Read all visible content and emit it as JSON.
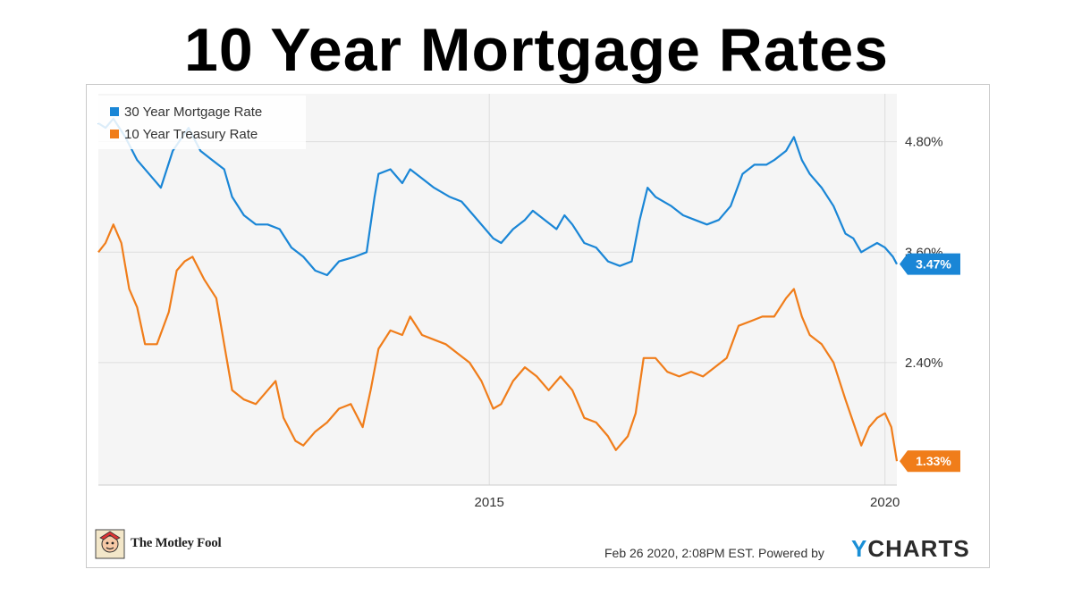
{
  "title": "10 Year Mortgage Rates",
  "colors": {
    "mortgage": "#1a86d6",
    "treasury": "#f07d1a",
    "plot_bg": "#f5f5f5",
    "grid": "#dddddd"
  },
  "footer": {
    "brand": "The Motley Fool",
    "timestamp": "Feb 26 2020, 2:08PM EST.",
    "powered_by": "Powered by",
    "ycharts_y": "Y",
    "ycharts_rest": "CHARTS"
  },
  "chart_data": {
    "type": "line",
    "title": "",
    "xlabel": "",
    "ylabel": "",
    "xlim": [
      2010.06,
      2020.15
    ],
    "ylim": [
      1.07,
      5.32
    ],
    "y_ticks": [
      {
        "value": 4.8,
        "label": "4.80%"
      },
      {
        "value": 3.6,
        "label": "3.60%"
      },
      {
        "value": 2.4,
        "label": "2.40%"
      }
    ],
    "x_ticks": [
      {
        "value": 2015,
        "label": "2015"
      },
      {
        "value": 2020,
        "label": "2020"
      }
    ],
    "grid": true,
    "legend": "top-left",
    "series": [
      {
        "name": "30 Year Mortgage Rate",
        "color": "#1a86d6",
        "last_label": "3.47%",
        "points": [
          [
            2010.06,
            5.0
          ],
          [
            2010.15,
            4.95
          ],
          [
            2010.25,
            5.05
          ],
          [
            2010.4,
            4.85
          ],
          [
            2010.55,
            4.6
          ],
          [
            2010.75,
            4.4
          ],
          [
            2010.85,
            4.3
          ],
          [
            2011.0,
            4.7
          ],
          [
            2011.12,
            4.85
          ],
          [
            2011.2,
            4.95
          ],
          [
            2011.35,
            4.7
          ],
          [
            2011.5,
            4.6
          ],
          [
            2011.65,
            4.5
          ],
          [
            2011.75,
            4.2
          ],
          [
            2011.9,
            4.0
          ],
          [
            2012.05,
            3.9
          ],
          [
            2012.2,
            3.9
          ],
          [
            2012.35,
            3.85
          ],
          [
            2012.5,
            3.65
          ],
          [
            2012.65,
            3.55
          ],
          [
            2012.8,
            3.4
          ],
          [
            2012.95,
            3.35
          ],
          [
            2013.1,
            3.5
          ],
          [
            2013.3,
            3.55
          ],
          [
            2013.45,
            3.6
          ],
          [
            2013.55,
            4.2
          ],
          [
            2013.6,
            4.45
          ],
          [
            2013.75,
            4.5
          ],
          [
            2013.9,
            4.35
          ],
          [
            2014.0,
            4.5
          ],
          [
            2014.15,
            4.4
          ],
          [
            2014.3,
            4.3
          ],
          [
            2014.5,
            4.2
          ],
          [
            2014.65,
            4.15
          ],
          [
            2014.8,
            4.0
          ],
          [
            2014.95,
            3.85
          ],
          [
            2015.05,
            3.75
          ],
          [
            2015.15,
            3.7
          ],
          [
            2015.3,
            3.85
          ],
          [
            2015.45,
            3.95
          ],
          [
            2015.55,
            4.05
          ],
          [
            2015.7,
            3.95
          ],
          [
            2015.85,
            3.85
          ],
          [
            2015.95,
            4.0
          ],
          [
            2016.05,
            3.9
          ],
          [
            2016.2,
            3.7
          ],
          [
            2016.35,
            3.65
          ],
          [
            2016.5,
            3.5
          ],
          [
            2016.65,
            3.45
          ],
          [
            2016.8,
            3.5
          ],
          [
            2016.9,
            3.95
          ],
          [
            2017.0,
            4.3
          ],
          [
            2017.1,
            4.2
          ],
          [
            2017.3,
            4.1
          ],
          [
            2017.45,
            4.0
          ],
          [
            2017.6,
            3.95
          ],
          [
            2017.75,
            3.9
          ],
          [
            2017.9,
            3.95
          ],
          [
            2018.05,
            4.1
          ],
          [
            2018.2,
            4.45
          ],
          [
            2018.35,
            4.55
          ],
          [
            2018.5,
            4.55
          ],
          [
            2018.6,
            4.6
          ],
          [
            2018.75,
            4.7
          ],
          [
            2018.85,
            4.85
          ],
          [
            2018.95,
            4.6
          ],
          [
            2019.05,
            4.45
          ],
          [
            2019.2,
            4.3
          ],
          [
            2019.35,
            4.1
          ],
          [
            2019.5,
            3.8
          ],
          [
            2019.6,
            3.75
          ],
          [
            2019.7,
            3.6
          ],
          [
            2019.8,
            3.65
          ],
          [
            2019.9,
            3.7
          ],
          [
            2020.0,
            3.65
          ],
          [
            2020.1,
            3.55
          ],
          [
            2020.15,
            3.47
          ]
        ]
      },
      {
        "name": "10 Year Treasury Rate",
        "color": "#f07d1a",
        "last_label": "1.33%",
        "points": [
          [
            2010.06,
            3.6
          ],
          [
            2010.15,
            3.7
          ],
          [
            2010.25,
            3.9
          ],
          [
            2010.35,
            3.7
          ],
          [
            2010.45,
            3.2
          ],
          [
            2010.55,
            3.0
          ],
          [
            2010.65,
            2.6
          ],
          [
            2010.8,
            2.6
          ],
          [
            2010.95,
            2.95
          ],
          [
            2011.05,
            3.4
          ],
          [
            2011.15,
            3.5
          ],
          [
            2011.25,
            3.55
          ],
          [
            2011.4,
            3.3
          ],
          [
            2011.55,
            3.1
          ],
          [
            2011.65,
            2.6
          ],
          [
            2011.75,
            2.1
          ],
          [
            2011.9,
            2.0
          ],
          [
            2012.05,
            1.95
          ],
          [
            2012.2,
            2.1
          ],
          [
            2012.3,
            2.2
          ],
          [
            2012.4,
            1.8
          ],
          [
            2012.55,
            1.55
          ],
          [
            2012.65,
            1.5
          ],
          [
            2012.8,
            1.65
          ],
          [
            2012.95,
            1.75
          ],
          [
            2013.1,
            1.9
          ],
          [
            2013.25,
            1.95
          ],
          [
            2013.4,
            1.7
          ],
          [
            2013.5,
            2.1
          ],
          [
            2013.6,
            2.55
          ],
          [
            2013.75,
            2.75
          ],
          [
            2013.9,
            2.7
          ],
          [
            2014.0,
            2.9
          ],
          [
            2014.15,
            2.7
          ],
          [
            2014.3,
            2.65
          ],
          [
            2014.45,
            2.6
          ],
          [
            2014.6,
            2.5
          ],
          [
            2014.75,
            2.4
          ],
          [
            2014.9,
            2.2
          ],
          [
            2015.05,
            1.9
          ],
          [
            2015.15,
            1.95
          ],
          [
            2015.3,
            2.2
          ],
          [
            2015.45,
            2.35
          ],
          [
            2015.6,
            2.25
          ],
          [
            2015.75,
            2.1
          ],
          [
            2015.9,
            2.25
          ],
          [
            2016.05,
            2.1
          ],
          [
            2016.2,
            1.8
          ],
          [
            2016.35,
            1.75
          ],
          [
            2016.5,
            1.6
          ],
          [
            2016.6,
            1.45
          ],
          [
            2016.75,
            1.6
          ],
          [
            2016.85,
            1.85
          ],
          [
            2016.95,
            2.45
          ],
          [
            2017.1,
            2.45
          ],
          [
            2017.25,
            2.3
          ],
          [
            2017.4,
            2.25
          ],
          [
            2017.55,
            2.3
          ],
          [
            2017.7,
            2.25
          ],
          [
            2017.85,
            2.35
          ],
          [
            2018.0,
            2.45
          ],
          [
            2018.15,
            2.8
          ],
          [
            2018.3,
            2.85
          ],
          [
            2018.45,
            2.9
          ],
          [
            2018.6,
            2.9
          ],
          [
            2018.75,
            3.1
          ],
          [
            2018.85,
            3.2
          ],
          [
            2018.95,
            2.9
          ],
          [
            2019.05,
            2.7
          ],
          [
            2019.2,
            2.6
          ],
          [
            2019.35,
            2.4
          ],
          [
            2019.5,
            2.0
          ],
          [
            2019.6,
            1.75
          ],
          [
            2019.7,
            1.5
          ],
          [
            2019.8,
            1.7
          ],
          [
            2019.9,
            1.8
          ],
          [
            2020.0,
            1.85
          ],
          [
            2020.08,
            1.7
          ],
          [
            2020.15,
            1.33
          ]
        ]
      }
    ]
  }
}
